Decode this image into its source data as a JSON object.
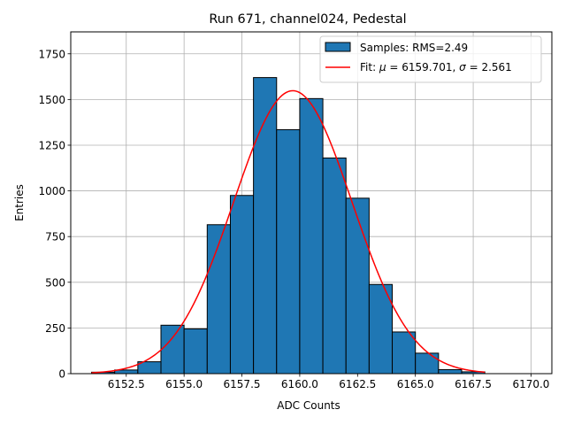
{
  "chart_data": {
    "type": "bar",
    "title": "Run 671, channel024, Pedestal",
    "xlabel": "ADC Counts",
    "ylabel": "Entries",
    "xlim": [
      6150.1,
      6170.9
    ],
    "ylim": [
      0,
      1870
    ],
    "grid": true,
    "legend_position": "top-right",
    "x_ticks": [
      6152.5,
      6155.0,
      6157.5,
      6160.0,
      6162.5,
      6165.0,
      6167.5,
      6170.0
    ],
    "x_tick_labels": [
      "6152.5",
      "6155.0",
      "6157.5",
      "6160.0",
      "6162.5",
      "6165.0",
      "6167.5",
      "6170.0"
    ],
    "y_ticks": [
      0,
      250,
      500,
      750,
      1000,
      1250,
      1500,
      1750
    ],
    "y_tick_labels": [
      "0",
      "250",
      "500",
      "750",
      "1000",
      "1250",
      "1500",
      "1750"
    ],
    "histogram": {
      "name": "Samples: RMS=2.49",
      "color": "#1f77b4",
      "edge_color": "#000000",
      "bin_edges": [
        6151,
        6152,
        6153,
        6154,
        6155,
        6156,
        6157,
        6158,
        6159,
        6160,
        6161,
        6162,
        6163,
        6164,
        6165,
        6166,
        6167,
        6168
      ],
      "counts": [
        8,
        20,
        65,
        265,
        245,
        815,
        975,
        1620,
        1335,
        1505,
        1180,
        960,
        488,
        228,
        112,
        22,
        10
      ]
    },
    "fit": {
      "name_prefix": "Fit: ",
      "mu_symbol": "μ",
      "mu_text": " = 6159.701, ",
      "sigma_symbol": "σ",
      "sigma_text": " = 2.561",
      "mu": 6159.701,
      "sigma": 2.561,
      "amplitude": 1548,
      "x_range": [
        6151,
        6168
      ],
      "color": "#ff0000"
    }
  }
}
